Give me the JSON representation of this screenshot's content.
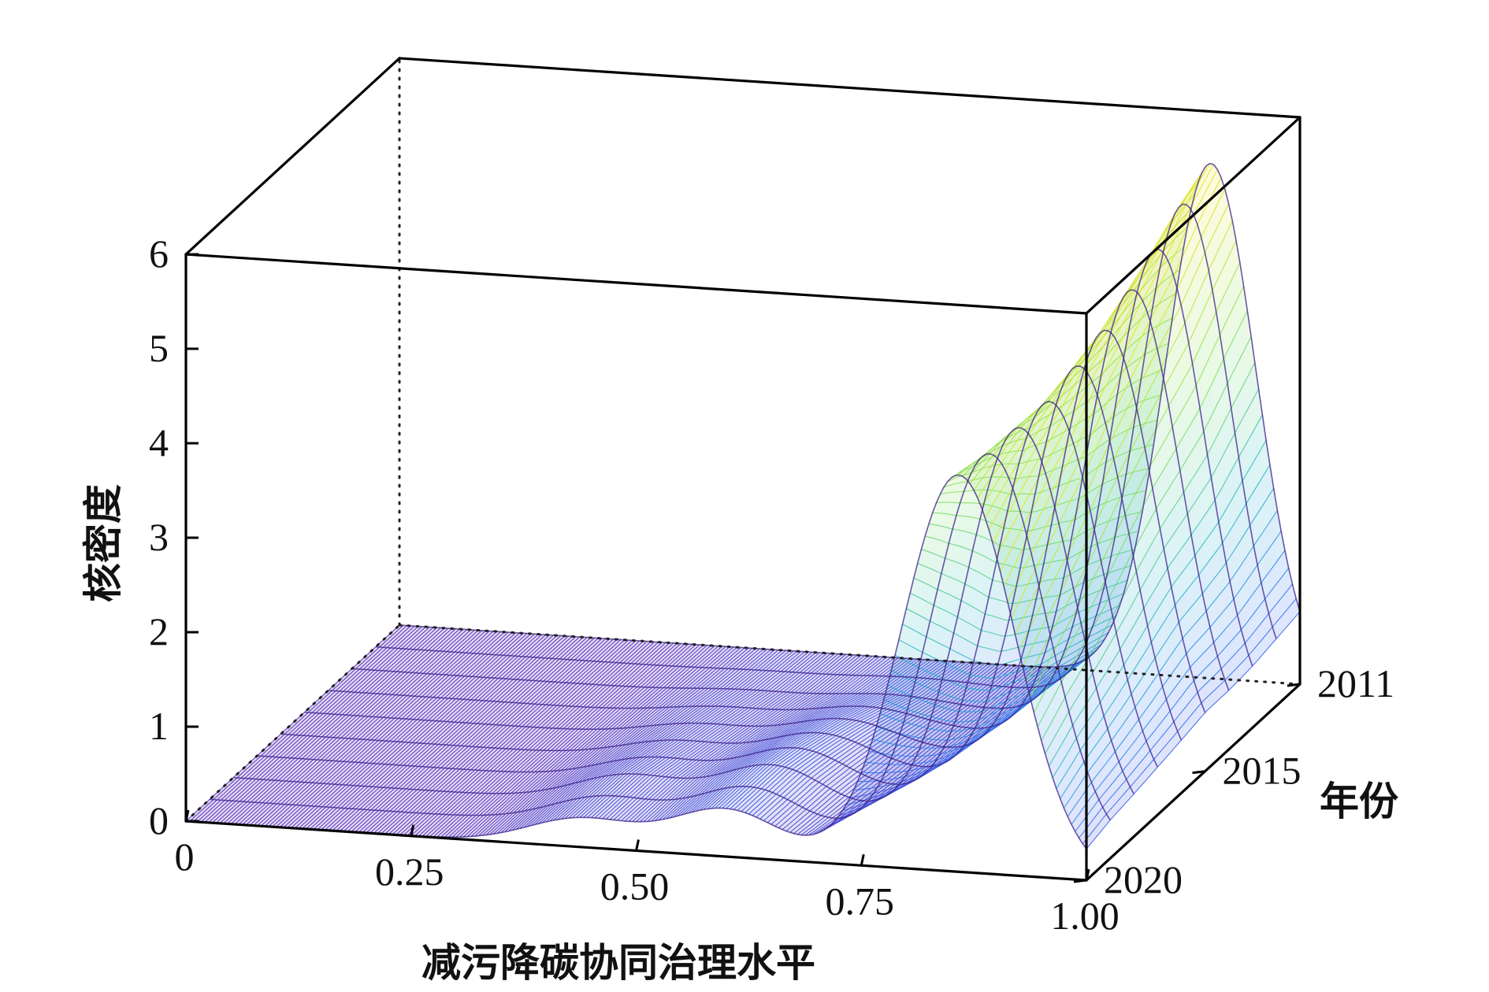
{
  "chart_data": {
    "type": "surface-3d",
    "title": "",
    "xlabel": "减污降碳协同治理水平",
    "ylabel": "年份",
    "zlabel": "核密度",
    "xlim": [
      0,
      1.0
    ],
    "zlim": [
      0,
      6
    ],
    "x_ticks": [
      "0",
      "0.25",
      "0.50",
      "0.75",
      "1.00"
    ],
    "y_ticks": [
      "2011",
      "2015",
      "2020"
    ],
    "z_ticks": [
      "0",
      "1",
      "2",
      "3",
      "4",
      "5",
      "6"
    ],
    "years": [
      2011,
      2012,
      2013,
      2014,
      2015,
      2016,
      2017,
      2018,
      2019,
      2020
    ],
    "peak_center_x": [
      0.901,
      0.898,
      0.895,
      0.893,
      0.89,
      0.886,
      0.88,
      0.873,
      0.866,
      0.858
    ],
    "peak_width_x": [
      0.05,
      0.051,
      0.052,
      0.053,
      0.055,
      0.056,
      0.058,
      0.06,
      0.062,
      0.063
    ],
    "peak_density": [
      5.45,
      5.25,
      5.0,
      4.8,
      4.6,
      4.45,
      4.3,
      4.25,
      4.2,
      4.2
    ],
    "secondary_bumps": [
      {
        "x": 0.6,
        "width": 0.06,
        "density_by_year": [
          0.0,
          0.05,
          0.1,
          0.2,
          0.3,
          0.38,
          0.45,
          0.5,
          0.5,
          0.5
        ]
      },
      {
        "x": 0.44,
        "width": 0.06,
        "density_by_year": [
          0.0,
          0.02,
          0.05,
          0.1,
          0.15,
          0.2,
          0.25,
          0.3,
          0.3,
          0.3
        ]
      }
    ],
    "colormap": [
      "#4b1fb5",
      "#2f6ef5",
      "#20b6c8",
      "#7ee05a",
      "#f4e51c"
    ],
    "grid": false
  }
}
